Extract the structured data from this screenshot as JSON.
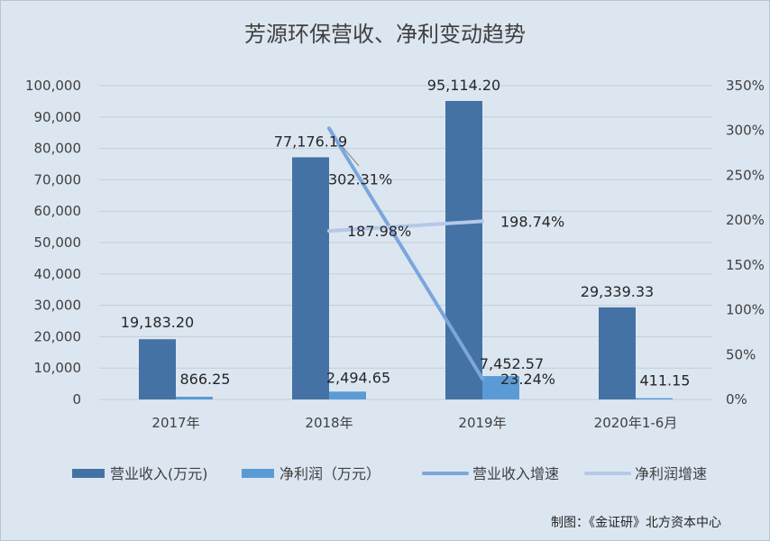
{
  "chart_data": {
    "type": "bar",
    "title": "芳源环保营收、净利变动趋势",
    "categories": [
      "2017年",
      "2018年",
      "2019年",
      "2020年1-6月"
    ],
    "ylim": [
      0,
      100000
    ],
    "y_ticks": [
      "0",
      "10,000",
      "20,000",
      "30,000",
      "40,000",
      "50,000",
      "60,000",
      "70,000",
      "80,000",
      "90,000",
      "100,000"
    ],
    "y2lim": [
      0,
      350
    ],
    "y2_ticks": [
      "0%",
      "50%",
      "100%",
      "150%",
      "200%",
      "250%",
      "300%",
      "350%"
    ],
    "series": [
      {
        "name": "营业收入(万元)",
        "kind": "bar",
        "axis": "left",
        "color": "#4472a4",
        "values": [
          19183.2,
          77176.19,
          95114.2,
          29339.33
        ],
        "labels": [
          "19,183.20",
          "77,176.19",
          "95,114.20",
          "29,339.33"
        ]
      },
      {
        "name": "净利润（万元）",
        "kind": "bar",
        "axis": "left",
        "color": "#5b9bd5",
        "values": [
          866.25,
          2494.65,
          7452.57,
          411.15
        ],
        "labels": [
          "866.25",
          "2,494.65",
          "7,452.57",
          "411.15"
        ]
      },
      {
        "name": "营业收入增速",
        "kind": "line",
        "axis": "right",
        "color": "#7aa6dc",
        "values": [
          null,
          302.31,
          23.24,
          null
        ],
        "labels": [
          null,
          "302.31%",
          "23.24%",
          null
        ]
      },
      {
        "name": "净利润增速",
        "kind": "line",
        "axis": "right",
        "color": "#b4c9e7",
        "values": [
          null,
          187.98,
          198.74,
          null
        ],
        "labels": [
          null,
          "187.98%",
          "198.74%",
          null
        ]
      }
    ],
    "legend_position": "bottom",
    "grid": true
  },
  "source_note": "制图：《金证研》北方资本中心"
}
